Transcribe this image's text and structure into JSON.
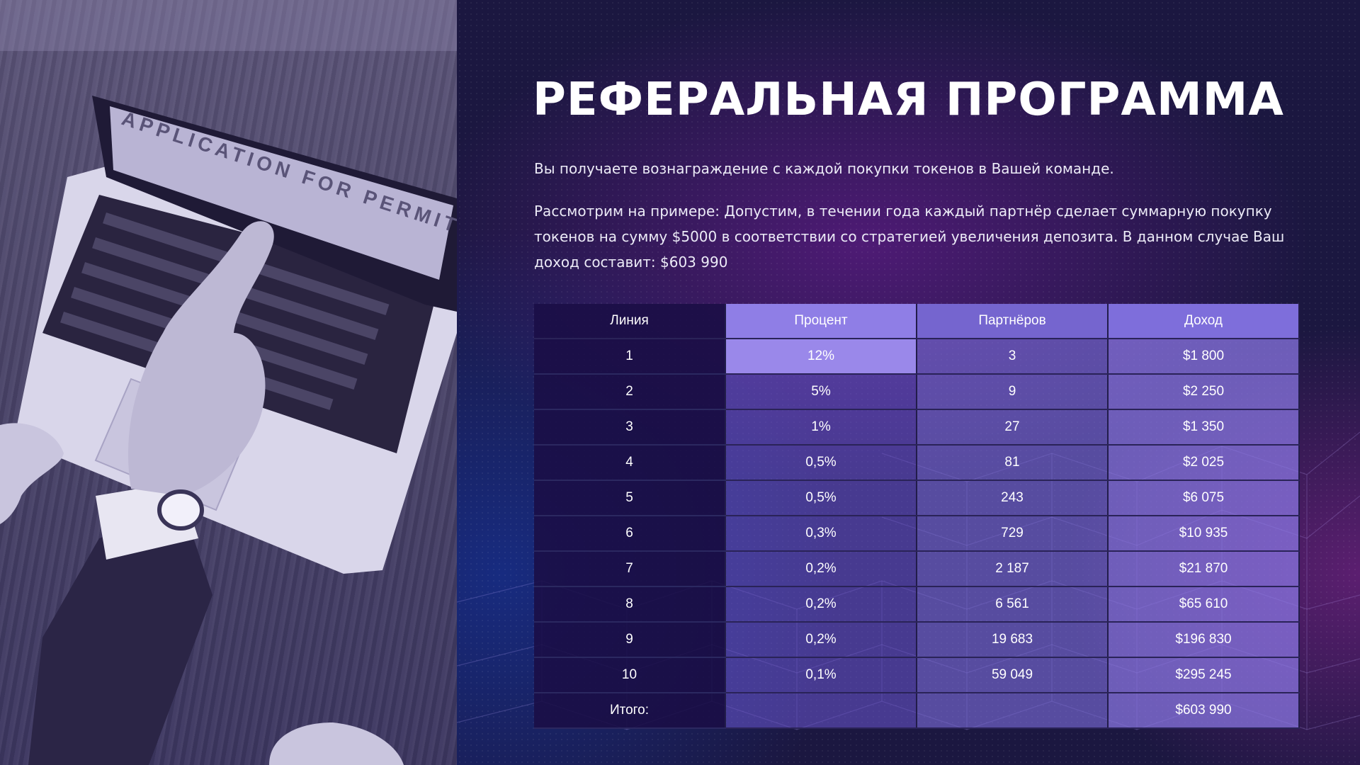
{
  "title": "РЕФЕРАЛЬНАЯ ПРОГРАММА",
  "paragraphs": {
    "intro": "Вы получаете вознаграждение с каждой покупки токенов в Вашей команде.",
    "example": "Рассмотрим на примере: Допустим, в течении года каждый партнёр сделает суммарную покупку токенов на сумму $5000 в соответствии со стратегией увеличения депозита. В данном случае Ваш доход составит: $603 990"
  },
  "photo": {
    "screen_text": "APPLICATION FOR PERMIT"
  },
  "table": {
    "headers": [
      "Линия",
      "Процент",
      "Партнёров",
      "Доход"
    ],
    "rows": [
      [
        "1",
        "12%",
        "3",
        "$1 800"
      ],
      [
        "2",
        "5%",
        "9",
        "$2 250"
      ],
      [
        "3",
        "1%",
        "27",
        "$1 350"
      ],
      [
        "4",
        "0,5%",
        "81",
        "$2 025"
      ],
      [
        "5",
        "0,5%",
        "243",
        "$6 075"
      ],
      [
        "6",
        "0,3%",
        "729",
        "$10 935"
      ],
      [
        "7",
        "0,2%",
        "2 187",
        "$21 870"
      ],
      [
        "8",
        "0,2%",
        "6 561",
        "$65 610"
      ],
      [
        "9",
        "0,2%",
        "19 683",
        "$196 830"
      ],
      [
        "10",
        "0,1%",
        "59 049",
        "$295 245"
      ]
    ],
    "total": [
      "Итого:",
      "",
      "",
      "$603 990"
    ]
  },
  "colors": {
    "background": "#1b1740",
    "header_percent": "#8f7ee6",
    "line_column": "#1a0e46",
    "accent_purple": "#7e6edb"
  }
}
